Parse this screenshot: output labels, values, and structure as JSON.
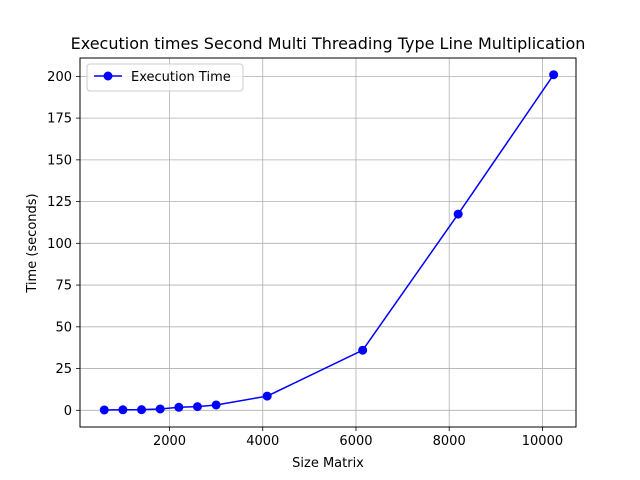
{
  "chart_data": {
    "type": "line",
    "title": "Execution times Second Multi Threading Type Line Multiplication",
    "xlabel": "Size Matrix",
    "ylabel": "Time (seconds)",
    "xlim": [
      80,
      10720
    ],
    "ylim": [
      -10,
      211
    ],
    "xticks": [
      2000,
      4000,
      6000,
      8000,
      10000
    ],
    "yticks": [
      0,
      25,
      50,
      75,
      100,
      125,
      150,
      175,
      200
    ],
    "grid": true,
    "legend_position": "top-left",
    "series": [
      {
        "name": "Execution Time",
        "color": "#0000ff",
        "marker": "circle",
        "x": [
          600,
          1000,
          1400,
          1800,
          2200,
          2600,
          3000,
          4096,
          6144,
          8192,
          10240
        ],
        "y": [
          0.2,
          0.3,
          0.4,
          0.8,
          1.8,
          2.2,
          3.2,
          8.5,
          36,
          117.5,
          201
        ]
      }
    ]
  }
}
